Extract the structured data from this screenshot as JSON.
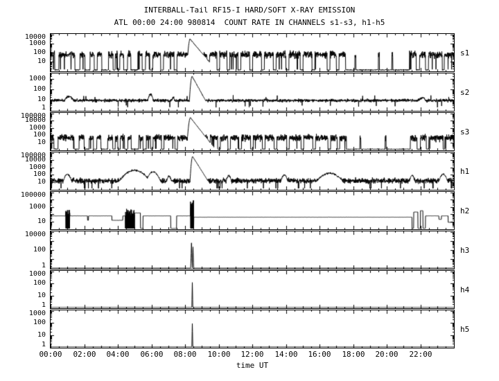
{
  "page": {
    "background": "#ffffff",
    "foreground": "#000000"
  },
  "chart_data": {
    "type": "line",
    "title": "INTERBALL-Tail RF15-I HARD/SOFT X-RAY EMISSION",
    "subtitle": "ATL 00:00 24:00 980814  COUNT RATE IN CHANNELS s1-s3, h1-h5",
    "xlabel": "time UT",
    "x_range_hours": [
      0,
      24
    ],
    "x_tick_labels": [
      "00:00",
      "02:00",
      "04:00",
      "06:00",
      "08:00",
      "10:00",
      "12:00",
      "14:00",
      "16:00",
      "18:00",
      "20:00",
      "22:00"
    ],
    "grid": false,
    "line_color": "#000000",
    "panels": [
      {
        "channel": "s1",
        "kind": "bursty",
        "log_range": [
          0,
          4
        ],
        "yticks": [
          {
            "exp": 4,
            "label": "10000"
          },
          {
            "exp": 3,
            "label": "1000"
          },
          {
            "exp": 2,
            "label": "100"
          },
          {
            "exp": 1,
            "label": "10"
          }
        ],
        "band_level": 60,
        "band_sigma": 0.32,
        "drop_level": 1.3,
        "down_spike_prob": 0.012,
        "dropouts": [
          [
            0.25,
            0.5
          ],
          [
            1.45,
            1.75
          ],
          [
            2.05,
            2.35
          ],
          [
            2.6,
            2.78
          ],
          [
            3.05,
            3.45
          ],
          [
            3.72,
            3.85
          ],
          [
            3.98,
            4.12
          ],
          [
            4.35,
            4.58
          ],
          [
            4.78,
            5.2
          ],
          [
            5.45,
            5.65
          ],
          [
            5.9,
            6.08
          ],
          [
            6.55,
            6.72
          ],
          [
            7.35,
            7.52
          ],
          [
            9.3,
            9.46
          ],
          [
            9.9,
            10.06
          ],
          [
            10.5,
            10.66
          ],
          [
            11.15,
            11.32
          ],
          [
            11.85,
            12.02
          ],
          [
            12.55,
            12.72
          ],
          [
            13.25,
            13.42
          ],
          [
            14.0,
            14.18
          ],
          [
            14.85,
            15.02
          ],
          [
            15.55,
            15.72
          ],
          [
            16.45,
            16.62
          ],
          [
            17.0,
            17.16
          ],
          [
            17.55,
            21.35
          ],
          [
            21.75,
            21.95
          ],
          [
            22.3,
            22.48
          ],
          [
            23.3,
            23.42
          ]
        ],
        "blips": [
          [
            18.1,
            18.16
          ],
          [
            19.5,
            19.56
          ],
          [
            20.3,
            20.36
          ]
        ],
        "flare": {
          "t": 8.3,
          "rise": 0.05,
          "decay": 0.2,
          "peak": 3000
        }
      },
      {
        "channel": "s2",
        "kind": "quiet",
        "log_range": [
          0,
          3.5
        ],
        "yticks": [
          {
            "exp": 3,
            "label": "1000"
          },
          {
            "exp": 2,
            "label": "100"
          },
          {
            "exp": 1,
            "label": "10"
          },
          {
            "exp": 0,
            "label": "1"
          }
        ],
        "level": 9,
        "sigma": 0.12,
        "up_spike_prob": 0.008,
        "down_spike_prob": 0.006,
        "bumps": [
          {
            "t": 1.1,
            "w": 0.2,
            "peak": 22
          },
          {
            "t": 5.95,
            "w": 0.1,
            "peak": 35
          },
          {
            "t": 7.3,
            "w": 0.07,
            "peak": 18
          },
          {
            "t": 22.1,
            "w": 0.2,
            "peak": 16
          }
        ],
        "flare": {
          "t": 8.42,
          "rise": 0.05,
          "decay": 0.15,
          "peak": 1800
        }
      },
      {
        "channel": "s3",
        "kind": "bursty",
        "log_range": [
          0,
          5
        ],
        "yticks": [
          {
            "exp": 5,
            "label": "100000"
          },
          {
            "exp": 4,
            "label": "10000"
          },
          {
            "exp": 3,
            "label": "1000"
          },
          {
            "exp": 2,
            "label": "100"
          },
          {
            "exp": 1,
            "label": "10"
          }
        ],
        "band_level": 45,
        "band_sigma": 0.38,
        "drop_level": 1.3,
        "down_spike_prob": 0.012,
        "dropouts": [
          [
            0.2,
            0.45
          ],
          [
            1.4,
            1.7
          ],
          [
            2.0,
            2.3
          ],
          [
            2.55,
            2.75
          ],
          [
            3.0,
            3.4
          ],
          [
            3.7,
            3.85
          ],
          [
            4.0,
            4.15
          ],
          [
            4.4,
            4.6
          ],
          [
            4.8,
            5.25
          ],
          [
            5.5,
            5.7
          ],
          [
            5.95,
            6.1
          ],
          [
            6.6,
            6.75
          ],
          [
            7.4,
            7.55
          ],
          [
            9.35,
            9.5
          ],
          [
            9.95,
            10.1
          ],
          [
            10.55,
            10.7
          ],
          [
            11.2,
            11.36
          ],
          [
            11.9,
            12.06
          ],
          [
            12.6,
            12.76
          ],
          [
            13.3,
            13.46
          ],
          [
            14.05,
            14.2
          ],
          [
            14.9,
            15.06
          ],
          [
            15.6,
            15.76
          ],
          [
            16.5,
            16.66
          ],
          [
            17.05,
            17.2
          ],
          [
            17.6,
            21.4
          ],
          [
            21.8,
            22.0
          ],
          [
            22.35,
            22.5
          ],
          [
            23.35,
            23.45
          ]
        ],
        "blips": [
          [
            18.4,
            18.46
          ],
          [
            19.9,
            19.96
          ]
        ],
        "flare": {
          "t": 8.32,
          "rise": 0.05,
          "decay": 0.15,
          "peak": 25000
        }
      },
      {
        "channel": "h1",
        "kind": "band",
        "log_range": [
          0,
          5
        ],
        "yticks": [
          {
            "exp": 5,
            "label": "100000"
          },
          {
            "exp": 4,
            "label": "10000"
          },
          {
            "exp": 3,
            "label": "1000"
          },
          {
            "exp": 2,
            "label": "100"
          },
          {
            "exp": 1,
            "label": "10"
          }
        ],
        "level": 15,
        "sigma": 0.3,
        "down_spike_prob": 0.025,
        "bumps": [
          {
            "t": 1.0,
            "w": 0.12,
            "peak": 120
          },
          {
            "t": 5.0,
            "w": 0.35,
            "peak": 400
          },
          {
            "t": 6.1,
            "w": 0.18,
            "peak": 250
          },
          {
            "t": 7.05,
            "w": 0.08,
            "peak": 60
          },
          {
            "t": 10.6,
            "w": 0.08,
            "peak": 80
          },
          {
            "t": 13.9,
            "w": 0.1,
            "peak": 100
          },
          {
            "t": 16.6,
            "w": 0.35,
            "peak": 160
          },
          {
            "t": 21.5,
            "w": 0.08,
            "peak": 80
          },
          {
            "t": 23.35,
            "w": 0.12,
            "peak": 120
          }
        ],
        "flare": {
          "t": 8.45,
          "rise": 0.04,
          "decay": 0.12,
          "peak": 30000
        }
      },
      {
        "channel": "h2",
        "kind": "steps",
        "log_range": [
          0,
          5
        ],
        "yticks": [
          {
            "exp": 5,
            "label": "100000"
          },
          {
            "exp": 3,
            "label": "1000"
          },
          {
            "exp": 1,
            "label": "10"
          }
        ],
        "default_level": 1.2,
        "step_sigma": 0.012,
        "steps": [
          [
            0,
            0.9,
            60
          ],
          [
            1.15,
            2.2,
            60
          ],
          [
            2.2,
            2.26,
            15
          ],
          [
            2.26,
            3.65,
            60
          ],
          [
            3.65,
            4.3,
            15
          ],
          [
            4.3,
            4.45,
            60
          ],
          [
            5.0,
            5.35,
            150
          ],
          [
            5.35,
            5.5,
            1.2
          ],
          [
            5.5,
            7.15,
            60
          ],
          [
            7.15,
            7.5,
            1.2
          ],
          [
            7.5,
            8.32,
            60
          ],
          [
            8.52,
            21.5,
            40
          ],
          [
            21.6,
            21.85,
            200
          ],
          [
            22.0,
            22.15,
            300
          ],
          [
            22.3,
            23.1,
            60
          ],
          [
            23.1,
            23.25,
            20
          ],
          [
            23.25,
            23.65,
            60
          ],
          [
            23.65,
            24.01,
            8
          ]
        ],
        "blobs": [
          {
            "t0": 0.9,
            "t1": 1.15,
            "hi": 400
          },
          {
            "t0": 4.45,
            "t1": 5.0,
            "hi": 600
          },
          {
            "t0": 8.32,
            "t1": 8.52,
            "hi": 8000
          }
        ]
      },
      {
        "channel": "h3",
        "kind": "flat",
        "log_range": [
          0,
          4
        ],
        "yticks": [
          {
            "exp": 4,
            "label": "10000"
          },
          {
            "exp": 2,
            "label": "100"
          },
          {
            "exp": 0,
            "label": "1"
          }
        ],
        "level": 1.12,
        "spikes": [
          {
            "t": 8.38,
            "w": 0.05,
            "peak": 600
          },
          {
            "t": 8.47,
            "w": 0.04,
            "peak": 220
          }
        ]
      },
      {
        "channel": "h4",
        "kind": "flat",
        "log_range": [
          0,
          3
        ],
        "yticks": [
          {
            "exp": 3,
            "label": "1000"
          },
          {
            "exp": 2,
            "label": "100"
          },
          {
            "exp": 1,
            "label": "10"
          },
          {
            "exp": 0,
            "label": "1"
          }
        ],
        "level": 1.12,
        "spikes": [
          {
            "t": 8.43,
            "w": 0.03,
            "peak": 120
          }
        ]
      },
      {
        "channel": "h5",
        "kind": "flat",
        "log_range": [
          0,
          3
        ],
        "yticks": [
          {
            "exp": 3,
            "label": "1000"
          },
          {
            "exp": 2,
            "label": "100"
          },
          {
            "exp": 1,
            "label": "10"
          },
          {
            "exp": 0,
            "label": "1"
          }
        ],
        "level": 1.12,
        "spikes": [
          {
            "t": 8.43,
            "w": 0.03,
            "peak": 90
          }
        ]
      }
    ]
  }
}
